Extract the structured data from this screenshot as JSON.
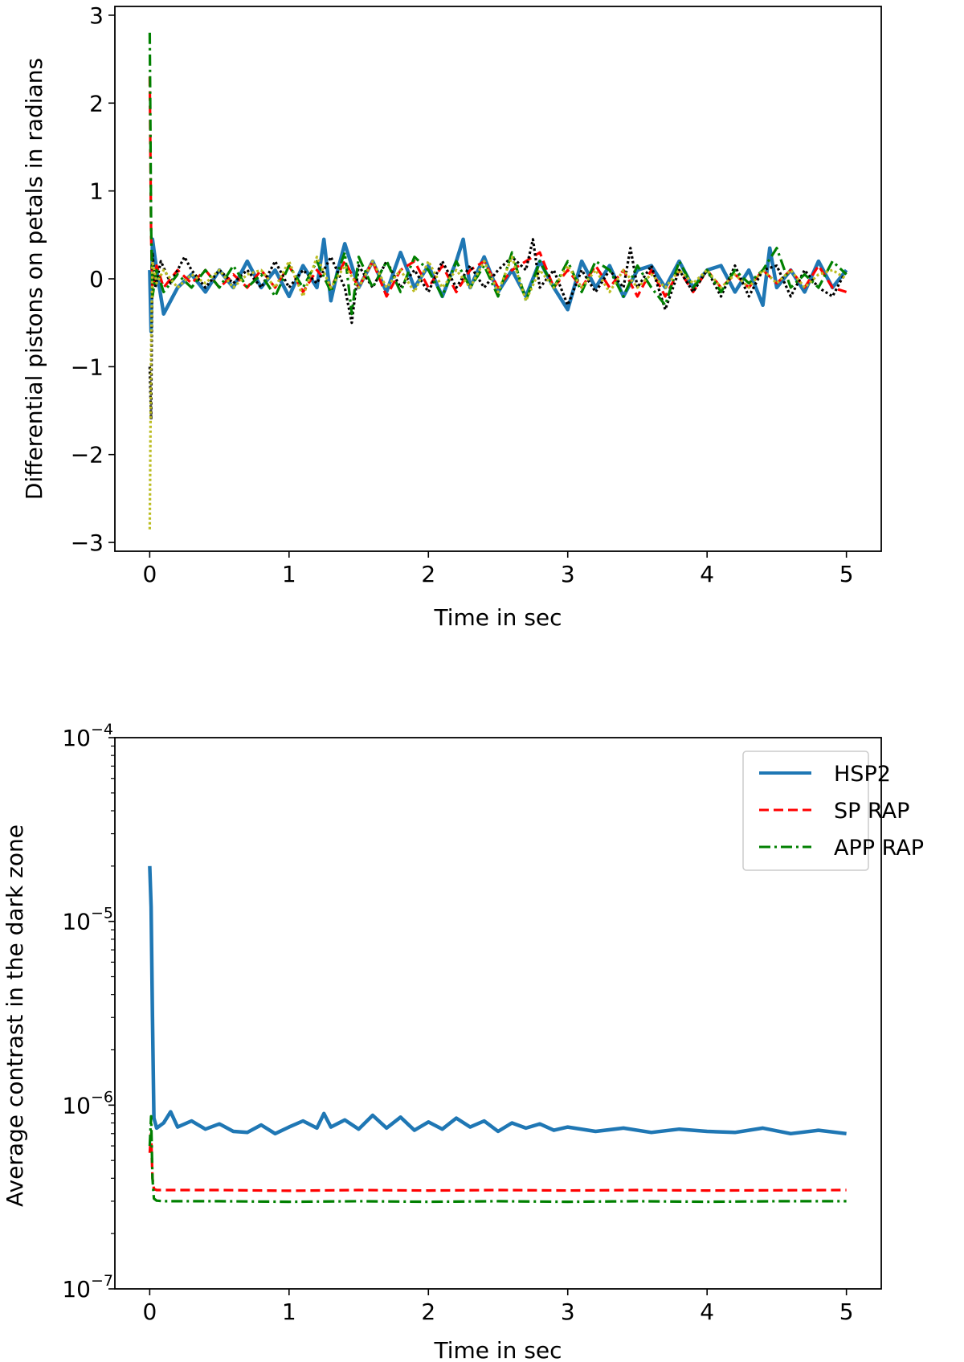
{
  "chart_data": [
    {
      "type": "line",
      "title": "",
      "xlabel": "Time in sec",
      "ylabel": "Differential pistons on petals in radians",
      "xlim": [
        -0.25,
        5.25
      ],
      "ylim": [
        -3.1,
        3.1
      ],
      "xticks": [
        0,
        1,
        2,
        3,
        4,
        5
      ],
      "xtick_labels": [
        "0",
        "1",
        "2",
        "3",
        "4",
        "5"
      ],
      "yticks": [
        -3,
        -2,
        -1,
        0,
        1,
        2,
        3
      ],
      "ytick_labels": [
        "−3",
        "−2",
        "−1",
        "0",
        "1",
        "2",
        "3"
      ],
      "grid": false,
      "legend": null,
      "series": [
        {
          "color": "#1f77b4",
          "style": "solid",
          "x": [
            0,
            0.01,
            0.02,
            0.05,
            0.1,
            0.2,
            0.3,
            0.4,
            0.5,
            0.6,
            0.7,
            0.8,
            0.9,
            1.0,
            1.1,
            1.2,
            1.25,
            1.3,
            1.35,
            1.4,
            1.5,
            1.6,
            1.7,
            1.8,
            1.9,
            2.0,
            2.1,
            2.2,
            2.25,
            2.3,
            2.4,
            2.5,
            2.6,
            2.7,
            2.8,
            2.9,
            3.0,
            3.1,
            3.2,
            3.3,
            3.4,
            3.5,
            3.6,
            3.7,
            3.8,
            3.9,
            4.0,
            4.1,
            4.2,
            4.3,
            4.4,
            4.45,
            4.5,
            4.6,
            4.7,
            4.8,
            4.9,
            5.0
          ],
          "y": [
            0.1,
            -0.6,
            0.45,
            0.1,
            -0.4,
            -0.1,
            0.05,
            -0.15,
            0.1,
            -0.1,
            0.2,
            -0.1,
            0.1,
            -0.2,
            0.15,
            -0.1,
            0.45,
            -0.25,
            0.1,
            0.4,
            -0.1,
            0.2,
            -0.15,
            0.3,
            -0.1,
            0.15,
            -0.2,
            0.2,
            0.45,
            -0.1,
            0.25,
            -0.15,
            0.1,
            -0.2,
            0.2,
            -0.1,
            -0.35,
            0.2,
            -0.1,
            0.15,
            -0.2,
            0.1,
            0.15,
            -0.1,
            0.2,
            -0.1,
            0.1,
            0.15,
            -0.15,
            0.1,
            -0.3,
            0.35,
            -0.1,
            0.1,
            -0.15,
            0.2,
            -0.1,
            0.1
          ]
        },
        {
          "color": "#ff0000",
          "style": "dashed",
          "x": [
            0,
            0.01,
            0.02,
            0.05,
            0.1,
            0.2,
            0.3,
            0.4,
            0.5,
            0.6,
            0.7,
            0.8,
            0.9,
            1.0,
            1.1,
            1.2,
            1.3,
            1.4,
            1.5,
            1.6,
            1.7,
            1.8,
            1.9,
            2.0,
            2.1,
            2.2,
            2.3,
            2.4,
            2.5,
            2.6,
            2.7,
            2.8,
            2.9,
            3.0,
            3.1,
            3.2,
            3.3,
            3.4,
            3.5,
            3.6,
            3.7,
            3.8,
            3.9,
            4.0,
            4.1,
            4.2,
            4.3,
            4.4,
            4.5,
            4.6,
            4.7,
            4.8,
            4.9,
            5.0
          ],
          "y": [
            2.3,
            0.5,
            -0.2,
            0.15,
            -0.1,
            0.1,
            -0.05,
            0.1,
            -0.1,
            0.05,
            -0.1,
            0.1,
            -0.1,
            0.15,
            -0.15,
            0.1,
            -0.1,
            0.2,
            -0.1,
            0.2,
            -0.2,
            0.1,
            0.2,
            -0.1,
            0.15,
            -0.15,
            0.1,
            0.2,
            -0.1,
            0.1,
            0.2,
            0.3,
            -0.1,
            0.1,
            -0.1,
            0.15,
            -0.1,
            0.1,
            -0.2,
            0.1,
            -0.2,
            0.1,
            -0.15,
            0.1,
            -0.1,
            0.05,
            -0.1,
            0.1,
            -0.05,
            0.1,
            -0.1,
            0.15,
            -0.1,
            -0.15
          ]
        },
        {
          "color": "#000000",
          "style": "dotted",
          "x": [
            0,
            0.01,
            0.02,
            0.04,
            0.08,
            0.15,
            0.25,
            0.3,
            0.4,
            0.5,
            0.6,
            0.7,
            0.8,
            0.9,
            1.0,
            1.1,
            1.2,
            1.3,
            1.4,
            1.45,
            1.5,
            1.6,
            1.7,
            1.8,
            1.9,
            2.0,
            2.1,
            2.2,
            2.3,
            2.4,
            2.5,
            2.6,
            2.7,
            2.75,
            2.8,
            2.9,
            3.0,
            3.1,
            3.2,
            3.3,
            3.4,
            3.45,
            3.5,
            3.6,
            3.7,
            3.8,
            3.9,
            4.0,
            4.1,
            4.2,
            4.3,
            4.4,
            4.5,
            4.6,
            4.7,
            4.8,
            4.9,
            5.0
          ],
          "y": [
            -1.0,
            -1.6,
            0.3,
            -0.1,
            0.2,
            -0.05,
            0.25,
            0.1,
            -0.1,
            0.1,
            -0.05,
            0.1,
            -0.1,
            0.2,
            -0.1,
            0.1,
            -0.05,
            0.25,
            -0.1,
            -0.5,
            0.15,
            -0.1,
            0.2,
            -0.1,
            0.1,
            -0.15,
            0.2,
            -0.1,
            0.15,
            -0.1,
            0.1,
            0.25,
            0.1,
            0.45,
            -0.1,
            0.1,
            -0.3,
            0.1,
            -0.15,
            0.1,
            -0.1,
            0.35,
            -0.1,
            0.15,
            -0.35,
            0.1,
            -0.15,
            0.1,
            -0.2,
            0.15,
            -0.2,
            0.1,
            0.15,
            -0.2,
            0.1,
            -0.1,
            -0.2,
            0.1
          ]
        },
        {
          "color": "#008000",
          "style": "dashdot",
          "x": [
            0,
            0.01,
            0.02,
            0.05,
            0.1,
            0.2,
            0.3,
            0.4,
            0.5,
            0.6,
            0.7,
            0.8,
            0.9,
            1.0,
            1.1,
            1.2,
            1.3,
            1.4,
            1.45,
            1.5,
            1.6,
            1.7,
            1.8,
            1.9,
            2.0,
            2.1,
            2.2,
            2.3,
            2.4,
            2.5,
            2.6,
            2.7,
            2.8,
            2.9,
            3.0,
            3.1,
            3.2,
            3.3,
            3.4,
            3.5,
            3.6,
            3.7,
            3.8,
            3.9,
            4.0,
            4.1,
            4.2,
            4.3,
            4.4,
            4.5,
            4.6,
            4.7,
            4.8,
            4.9,
            5.0
          ],
          "y": [
            2.8,
            0.6,
            -0.2,
            0.1,
            -0.15,
            0.05,
            -0.1,
            0.1,
            -0.1,
            0.15,
            -0.1,
            0.05,
            -0.2,
            0.15,
            -0.1,
            0.2,
            -0.15,
            0.3,
            -0.4,
            0.25,
            -0.1,
            0.2,
            -0.15,
            0.25,
            0.1,
            -0.2,
            0.2,
            -0.1,
            0.15,
            -0.2,
            0.3,
            -0.25,
            0.2,
            -0.1,
            0.2,
            -0.15,
            0.2,
            0.1,
            -0.2,
            0.15,
            -0.1,
            -0.3,
            0.2,
            -0.1,
            0.1,
            -0.15,
            0.1,
            -0.05,
            0.1,
            0.35,
            -0.1,
            0.05,
            -0.1,
            0.2,
            0.05
          ]
        },
        {
          "color": "#bcbd22",
          "style": "dotted",
          "x": [
            0,
            0.01,
            0.02,
            0.05,
            0.1,
            0.2,
            0.3,
            0.4,
            0.5,
            0.6,
            0.7,
            0.8,
            0.9,
            1.0,
            1.1,
            1.2,
            1.3,
            1.4,
            1.5,
            1.6,
            1.7,
            1.8,
            1.9,
            2.0,
            2.1,
            2.2,
            2.3,
            2.4,
            2.5,
            2.6,
            2.7,
            2.8,
            2.9,
            3.0,
            3.1,
            3.2,
            3.3,
            3.4,
            3.5,
            3.6,
            3.7,
            3.8,
            3.9,
            4.0,
            4.1,
            4.2,
            4.3,
            4.4,
            4.5,
            4.6,
            4.7,
            4.8,
            4.9,
            5.0
          ],
          "y": [
            -2.85,
            -0.8,
            0.2,
            -0.05,
            0.1,
            -0.1,
            0.05,
            -0.05,
            0.1,
            -0.1,
            0.05,
            0.1,
            -0.1,
            0.2,
            -0.2,
            0.25,
            -0.1,
            0.15,
            -0.1,
            0.2,
            -0.1,
            0.1,
            -0.15,
            0.2,
            -0.1,
            0.1,
            -0.1,
            0.2,
            -0.15,
            0.25,
            -0.25,
            0.1,
            -0.1,
            0.15,
            -0.1,
            0.1,
            -0.15,
            0.1,
            -0.1,
            0.05,
            -0.1,
            0.1,
            -0.05,
            0.1,
            -0.1,
            0.05,
            -0.1,
            0.1,
            -0.05,
            0.1,
            -0.1,
            0.05,
            0.1,
            0.0
          ]
        }
      ]
    },
    {
      "type": "line",
      "title": "",
      "xlabel": "Time in sec",
      "ylabel": "Average contrast in the dark zone",
      "xlim": [
        -0.25,
        5.25
      ],
      "ylim": [
        1e-07,
        0.0001
      ],
      "yscale": "log",
      "xticks": [
        0,
        1,
        2,
        3,
        4,
        5
      ],
      "xtick_labels": [
        "0",
        "1",
        "2",
        "3",
        "4",
        "5"
      ],
      "yticks": [
        1e-07,
        1e-06,
        1e-05,
        0.0001
      ],
      "ytick_bases": [
        "10",
        "10",
        "10",
        "10"
      ],
      "ytick_exps": [
        "−7",
        "−6",
        "−5",
        "−4"
      ],
      "grid": false,
      "legend": "top-right",
      "series": [
        {
          "name": "HSP2",
          "color": "#1f77b4",
          "style": "solid",
          "x": [
            0,
            0.01,
            0.02,
            0.03,
            0.05,
            0.1,
            0.15,
            0.2,
            0.3,
            0.4,
            0.5,
            0.6,
            0.7,
            0.8,
            0.9,
            1.0,
            1.1,
            1.2,
            1.25,
            1.3,
            1.4,
            1.5,
            1.6,
            1.7,
            1.8,
            1.9,
            2.0,
            2.1,
            2.2,
            2.3,
            2.4,
            2.5,
            2.6,
            2.7,
            2.8,
            2.9,
            3.0,
            3.2,
            3.4,
            3.6,
            3.8,
            4.0,
            4.2,
            4.4,
            4.6,
            4.8,
            5.0
          ],
          "y": [
            2e-05,
            1.2e-05,
            3e-06,
            8.5e-07,
            7.5e-07,
            8e-07,
            9.2e-07,
            7.6e-07,
            8.2e-07,
            7.4e-07,
            7.9e-07,
            7.2e-07,
            7.1e-07,
            7.8e-07,
            7e-07,
            7.6e-07,
            8.2e-07,
            7.5e-07,
            9e-07,
            7.6e-07,
            8.3e-07,
            7.4e-07,
            8.8e-07,
            7.5e-07,
            8.6e-07,
            7.3e-07,
            8.1e-07,
            7.4e-07,
            8.5e-07,
            7.6e-07,
            8.2e-07,
            7.2e-07,
            8e-07,
            7.5e-07,
            7.9e-07,
            7.3e-07,
            7.6e-07,
            7.2e-07,
            7.5e-07,
            7.1e-07,
            7.4e-07,
            7.2e-07,
            7.1e-07,
            7.5e-07,
            7e-07,
            7.3e-07,
            7e-07
          ]
        },
        {
          "name": "SP RAP",
          "color": "#ff0000",
          "style": "dashed",
          "x": [
            0,
            0.01,
            0.02,
            0.03,
            0.05,
            0.1,
            0.5,
            1.0,
            1.5,
            2.0,
            2.5,
            3.0,
            3.5,
            4.0,
            4.5,
            5.0
          ],
          "y": [
            5.5e-07,
            7e-07,
            4e-07,
            3.5e-07,
            3.45e-07,
            3.45e-07,
            3.45e-07,
            3.42e-07,
            3.45e-07,
            3.43e-07,
            3.45e-07,
            3.43e-07,
            3.45e-07,
            3.43e-07,
            3.44e-07,
            3.45e-07
          ]
        },
        {
          "name": "APP RAP",
          "color": "#008000",
          "style": "dashdot",
          "x": [
            0,
            0.01,
            0.02,
            0.03,
            0.05,
            0.1,
            0.5,
            1.0,
            1.5,
            2.0,
            2.5,
            3.0,
            3.5,
            4.0,
            4.5,
            5.0
          ],
          "y": [
            6e-07,
            8.7e-07,
            4e-07,
            3.1e-07,
            3.02e-07,
            3e-07,
            3e-07,
            2.98e-07,
            3e-07,
            2.98e-07,
            3e-07,
            2.98e-07,
            3e-07,
            2.98e-07,
            3e-07,
            3e-07
          ]
        }
      ]
    }
  ]
}
